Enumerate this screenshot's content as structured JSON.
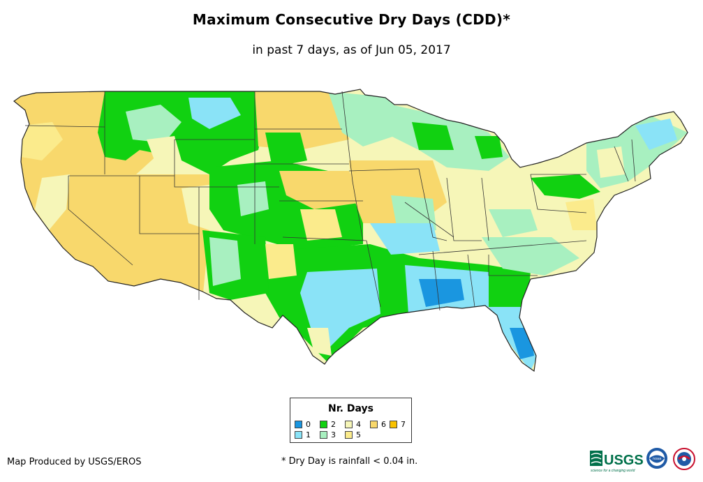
{
  "title": "Maximum Consecutive Dry Days (CDD)*",
  "subtitle": "in past 7 days, as of Jun 05, 2017",
  "legend": {
    "title": "Nr. Days",
    "items": [
      {
        "label": "0",
        "color": "#1a96e0"
      },
      {
        "label": "1",
        "color": "#8ae3f7"
      },
      {
        "label": "2",
        "color": "#11d111"
      },
      {
        "label": "3",
        "color": "#a8f0c0"
      },
      {
        "label": "4",
        "color": "#f6f6b8"
      },
      {
        "label": "5",
        "color": "#fbeb8c"
      },
      {
        "label": "6",
        "color": "#f8d86c"
      },
      {
        "label": "7",
        "color": "#f9c200"
      }
    ]
  },
  "credit": "Map Produced by USGS/EROS",
  "footnote": "* Dry Day is rainfall < 0.04 in.",
  "logos": {
    "usgs_text": "USGS",
    "usgs_tagline": "science for a changing world",
    "noaa_text": "noaa"
  }
}
